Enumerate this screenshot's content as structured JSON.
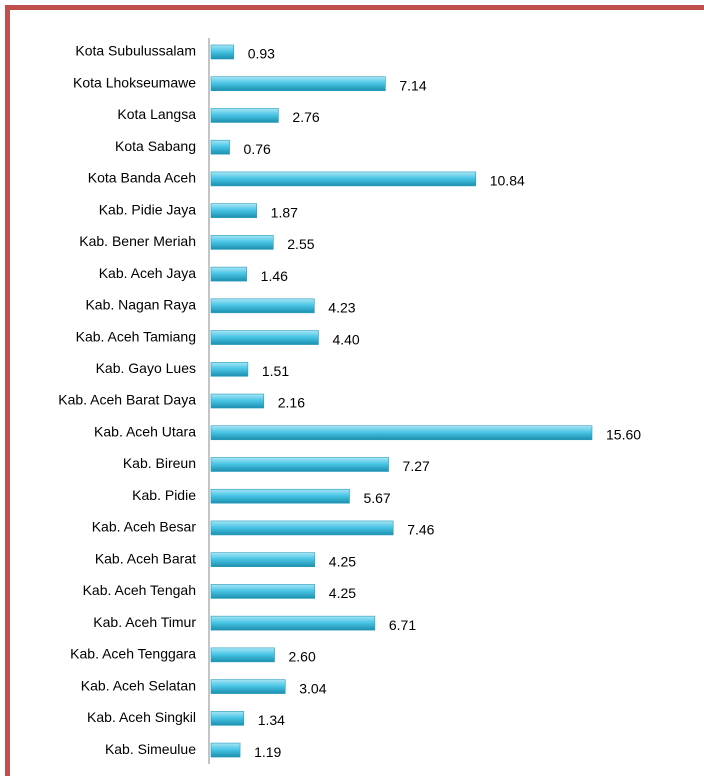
{
  "chart_data": {
    "type": "bar",
    "orientation": "horizontal",
    "categories": [
      "Kota Subulussalam",
      "Kota Lhokseumawe",
      "Kota Langsa",
      "Kota Sabang",
      "Kota Banda Aceh",
      "Kab. Pidie Jaya",
      "Kab. Bener Meriah",
      "Kab. Aceh Jaya",
      "Kab. Nagan Raya",
      "Kab. Aceh Tamiang",
      "Kab. Gayo Lues",
      "Kab. Aceh Barat Daya",
      "Kab. Aceh Utara",
      "Kab. Bireun",
      "Kab. Pidie",
      "Kab. Aceh Besar",
      "Kab. Aceh Barat",
      "Kab. Aceh Tengah",
      "Kab. Aceh Timur",
      "Kab. Aceh Tenggara",
      "Kab. Aceh Selatan",
      "Kab. Aceh Singkil",
      "Kab. Simeulue"
    ],
    "values": [
      0.93,
      7.14,
      2.76,
      0.76,
      10.84,
      1.87,
      2.55,
      1.46,
      4.23,
      4.4,
      1.51,
      2.16,
      15.6,
      7.27,
      5.67,
      7.46,
      4.25,
      4.25,
      6.71,
      2.6,
      3.04,
      1.34,
      1.19
    ],
    "value_labels": [
      "0.93",
      "7.14",
      "2.76",
      "0.76",
      "10.84",
      "1.87",
      "2.55",
      "1.46",
      "4.23",
      "4.40",
      "1.51",
      "2.16",
      "15.60",
      "7.27",
      "5.67",
      "7.46",
      "4.25",
      "4.25",
      "6.71",
      "2.60",
      "3.04",
      "1.34",
      "1.19"
    ],
    "color": "#4bc6e6"
  }
}
